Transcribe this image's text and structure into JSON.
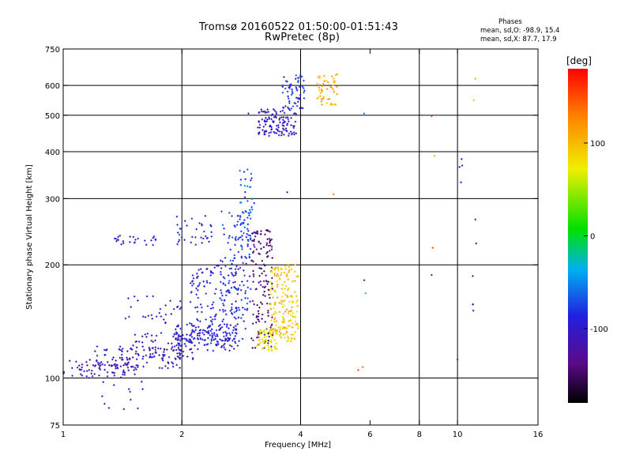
{
  "header": {
    "title_line1": "Tromsø 20160522 01:50:00-01:51:43",
    "title_line2": "RwPretec (8p)"
  },
  "info": {
    "heading": "Phases",
    "line1": "mean, sd,O: -98.9, 15.4",
    "line2": "mean, sd,X:  87.7, 17.9"
  },
  "colorbar": {
    "unit": "[deg]",
    "ticks": [
      {
        "value": 100,
        "label": "100"
      },
      {
        "value": 0,
        "label": "0"
      },
      {
        "value": -100,
        "label": "-100"
      }
    ],
    "range": [
      -180,
      180
    ]
  },
  "chart_data": {
    "type": "scatter",
    "xlabel": "Frequency [MHz]",
    "ylabel": "Stationary phase Virtual Height [km]",
    "x_scale": "log",
    "y_scale": "log",
    "xlim": [
      1,
      16
    ],
    "ylim": [
      75,
      750
    ],
    "x_ticks": [
      1,
      2,
      4,
      6,
      8,
      10,
      16
    ],
    "y_ticks": [
      75,
      100,
      200,
      300,
      400,
      500,
      600,
      750
    ],
    "grid_x": [
      2,
      4,
      8,
      10
    ],
    "grid_y": [
      100,
      200,
      300,
      400,
      500,
      600
    ],
    "color_by": "phase (deg)",
    "clusters": [
      {
        "f": [
          1.0,
          1.55
        ],
        "h": [
          100,
          112
        ],
        "phase": -115,
        "n": 70
      },
      {
        "f": [
          1.2,
          2.0
        ],
        "h": [
          106,
          122
        ],
        "phase": -105,
        "n": 110
      },
      {
        "f": [
          1.45,
          2.2
        ],
        "h": [
          112,
          132
        ],
        "phase": -110,
        "n": 60
      },
      {
        "f": [
          1.9,
          2.8
        ],
        "h": [
          118,
          140
        ],
        "phase": -95,
        "n": 150
      },
      {
        "f": [
          2.1,
          2.9
        ],
        "h": [
          125,
          200
        ],
        "phase": -90,
        "n": 160
      },
      {
        "f": [
          2.5,
          3.0
        ],
        "h": [
          150,
          280
        ],
        "phase": -80,
        "n": 110
      },
      {
        "f": [
          2.8,
          3.05
        ],
        "h": [
          230,
          360
        ],
        "phase": -70,
        "n": 45
      },
      {
        "f": [
          3.0,
          3.4
        ],
        "h": [
          120,
          250
        ],
        "phase": -140,
        "n": 150
      },
      {
        "f": [
          3.1,
          3.5
        ],
        "h": [
          118,
          135
        ],
        "phase": 80,
        "n": 60
      },
      {
        "f": [
          3.35,
          3.95
        ],
        "h": [
          125,
          200
        ],
        "phase": 95,
        "n": 170
      },
      {
        "f": [
          1.35,
          1.75
        ],
        "h": [
          225,
          240
        ],
        "phase": -100,
        "n": 25
      },
      {
        "f": [
          1.9,
          2.4
        ],
        "h": [
          225,
          270
        ],
        "phase": -95,
        "n": 35
      },
      {
        "f": [
          1.4,
          2.0
        ],
        "h": [
          140,
          165
        ],
        "phase": -105,
        "n": 30
      },
      {
        "f": [
          3.1,
          3.9
        ],
        "h": [
          440,
          520
        ],
        "phase": -100,
        "n": 120
      },
      {
        "f": [
          3.6,
          4.1
        ],
        "h": [
          520,
          640
        ],
        "phase": -85,
        "n": 60
      },
      {
        "f": [
          4.4,
          4.95
        ],
        "h": [
          530,
          650
        ],
        "phase": 105,
        "n": 50
      },
      {
        "f": [
          1.25,
          1.6
        ],
        "h": [
          82,
          98
        ],
        "phase": -110,
        "n": 12
      },
      {
        "f": [
          10.9,
          11.0
        ],
        "h": [
          140,
          190
        ],
        "phase": -110,
        "n": 4
      },
      {
        "f": [
          10.1,
          10.3
        ],
        "h": [
          310,
          400
        ],
        "phase": -110,
        "n": 4
      }
    ],
    "isolated_points": [
      {
        "f": 5.6,
        "h": 105,
        "phase": 150
      },
      {
        "f": 5.75,
        "h": 107,
        "phase": 140
      },
      {
        "f": 5.8,
        "h": 182,
        "phase": -110
      },
      {
        "f": 5.85,
        "h": 168,
        "phase": -20
      },
      {
        "f": 5.8,
        "h": 505,
        "phase": -60
      },
      {
        "f": 4.85,
        "h": 308,
        "phase": 130
      },
      {
        "f": 8.6,
        "h": 498,
        "phase": 170
      },
      {
        "f": 8.75,
        "h": 390,
        "phase": 100
      },
      {
        "f": 8.65,
        "h": 222,
        "phase": 150
      },
      {
        "f": 8.6,
        "h": 188,
        "phase": -100
      },
      {
        "f": 10.0,
        "h": 112,
        "phase": -120
      },
      {
        "f": 11.1,
        "h": 625,
        "phase": 110
      },
      {
        "f": 11.0,
        "h": 548,
        "phase": 100
      },
      {
        "f": 11.1,
        "h": 264,
        "phase": -110
      },
      {
        "f": 11.15,
        "h": 228,
        "phase": -110
      },
      {
        "f": 2.95,
        "h": 505,
        "phase": -120
      },
      {
        "f": 3.7,
        "h": 312,
        "phase": -110
      }
    ]
  }
}
